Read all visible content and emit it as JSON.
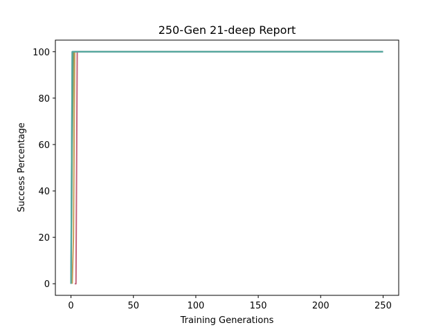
{
  "chart_data": {
    "type": "line",
    "title": "250-Gen 21-deep Report",
    "xlabel": "Training Generations",
    "ylabel": "Success Percentage",
    "xlim": [
      -12.5,
      262.5
    ],
    "ylim": [
      -5,
      105
    ],
    "xticks": [
      0,
      50,
      100,
      150,
      200,
      250
    ],
    "yticks": [
      0,
      20,
      40,
      60,
      80,
      100
    ],
    "grid": false,
    "series": [
      {
        "color": "#c2647a",
        "x": [
          3,
          4,
          5,
          250
        ],
        "y": [
          0,
          0,
          100,
          100
        ]
      },
      {
        "color": "#c8a05a",
        "x": [
          1,
          2,
          3,
          250
        ],
        "y": [
          0,
          20,
          100,
          100
        ]
      },
      {
        "color": "#8a9a5b",
        "x": [
          0,
          1,
          2,
          250
        ],
        "y": [
          0,
          60,
          100,
          100
        ]
      },
      {
        "color": "#5a8fc2",
        "x": [
          0,
          1,
          250
        ],
        "y": [
          0,
          100,
          100
        ]
      },
      {
        "color": "#4fa89c",
        "x": [
          0,
          1,
          250
        ],
        "y": [
          0,
          100,
          100
        ]
      }
    ]
  }
}
